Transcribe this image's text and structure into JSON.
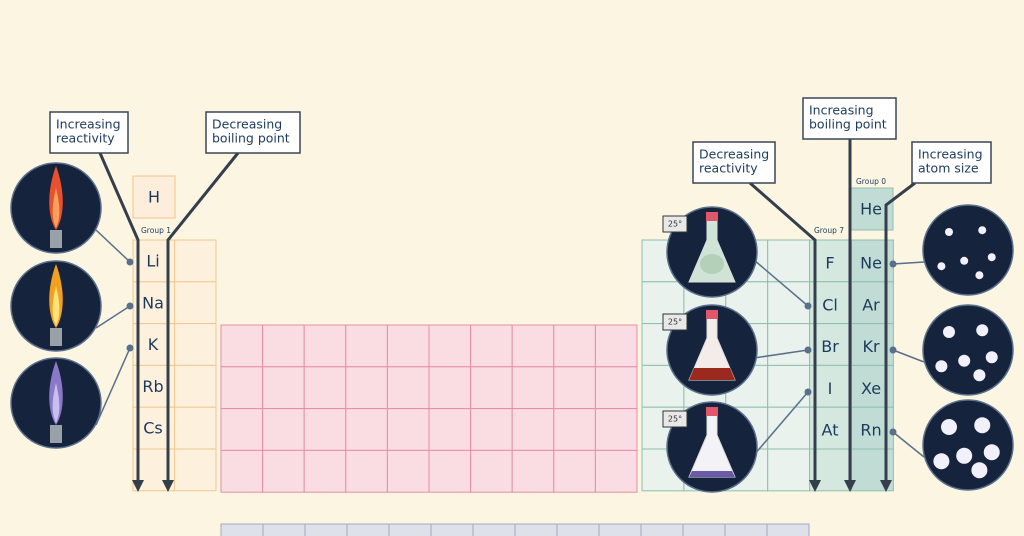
{
  "annotations": [
    {
      "lines": [
        "Increasing",
        "reactivity"
      ]
    },
    {
      "lines": [
        "Decreasing",
        "boiling point"
      ]
    },
    {
      "lines": [
        "Decreasing",
        "reactivity"
      ]
    },
    {
      "lines": [
        "Increasing",
        "boiling point"
      ]
    },
    {
      "lines": [
        "Increasing",
        "atom size"
      ]
    }
  ],
  "hydrogen": "H",
  "groups": {
    "group1": {
      "label": "Group 1",
      "elements": [
        "Li",
        "Na",
        "K",
        "Rb",
        "Cs"
      ]
    },
    "group7": {
      "label": "Group 7",
      "elements": [
        "F",
        "Cl",
        "Br",
        "I",
        "At"
      ]
    },
    "group0": {
      "label": "Group 0",
      "elements": [
        "He",
        "Ne",
        "Ar",
        "Kr",
        "Xe",
        "Rn"
      ]
    }
  },
  "thermometers": [
    "25°",
    "25°",
    "25°"
  ]
}
